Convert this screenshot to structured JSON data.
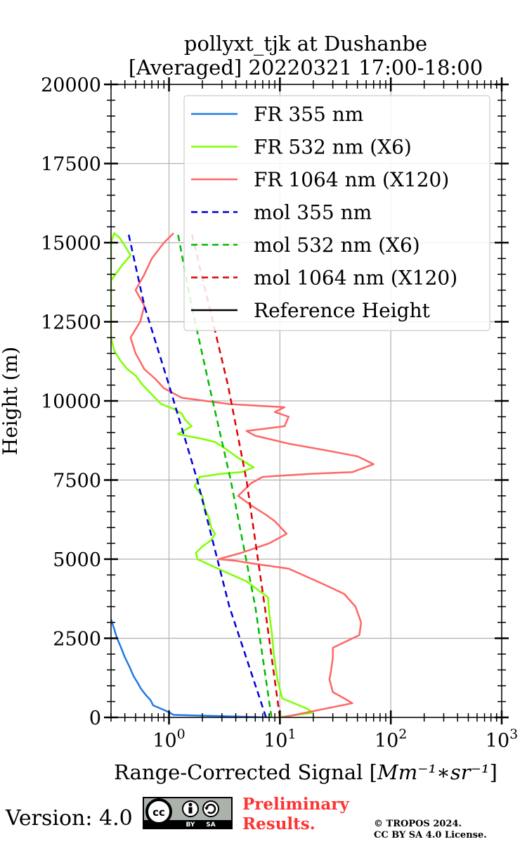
{
  "chart_data": {
    "type": "line",
    "title_line1": "pollyxt_tjk at Dushanbe",
    "title_line2": "[Averaged] 20220321 17:00-18:00",
    "xlabel": "Range-Corrected Signal [Mm^{-1}*sr^{-1}]",
    "xlabel_main": "Range-Corrected Signal [",
    "xlabel_unit": "Mm⁻¹∗sr⁻¹",
    "xlabel_close": "]",
    "ylabel": "Height (m)",
    "xscale": "log",
    "xlim": [
      0.3,
      1000
    ],
    "ylim": [
      0,
      20000
    ],
    "grid": true,
    "legend_position": "upper-right",
    "x_ticks": [
      {
        "value": 1,
        "base": "10",
        "exp": "0"
      },
      {
        "value": 10,
        "base": "10",
        "exp": "1"
      },
      {
        "value": 100,
        "base": "10",
        "exp": "2"
      },
      {
        "value": 1000,
        "base": "10",
        "exp": "3"
      }
    ],
    "y_ticks": [
      "0",
      "2500",
      "5000",
      "7500",
      "10000",
      "12500",
      "15000",
      "17500",
      "20000"
    ],
    "series": [
      {
        "name": "FR 355 nm",
        "color": "#1f7ae8",
        "style": "solid",
        "points": [
          [
            8.0,
            0
          ],
          [
            1.1,
            80
          ],
          [
            0.95,
            200
          ],
          [
            0.72,
            380
          ],
          [
            0.68,
            550
          ],
          [
            0.62,
            700
          ],
          [
            0.56,
            900
          ],
          [
            0.52,
            1100
          ],
          [
            0.48,
            1300
          ],
          [
            0.44,
            1600
          ],
          [
            0.4,
            1900
          ],
          [
            0.37,
            2200
          ],
          [
            0.34,
            2500
          ],
          [
            0.32,
            2800
          ],
          [
            0.3,
            3100
          ]
        ]
      },
      {
        "name": "FR 532 nm (X6)",
        "color": "#7fff00",
        "style": "solid",
        "points": [
          [
            9.5,
            0
          ],
          [
            20,
            150
          ],
          [
            17,
            300
          ],
          [
            10.5,
            600
          ],
          [
            9.5,
            1200
          ],
          [
            8.8,
            2000
          ],
          [
            8.5,
            2600
          ],
          [
            8.0,
            3300
          ],
          [
            7.8,
            3800
          ],
          [
            6.5,
            4000
          ],
          [
            5.0,
            4300
          ],
          [
            3.2,
            4600
          ],
          [
            2.4,
            4800
          ],
          [
            1.8,
            5000
          ],
          [
            1.75,
            5200
          ],
          [
            2.0,
            5400
          ],
          [
            2.4,
            5600
          ],
          [
            2.6,
            5800
          ],
          [
            2.4,
            6000
          ],
          [
            2.3,
            6300
          ],
          [
            2.1,
            6600
          ],
          [
            2.0,
            7000
          ],
          [
            1.7,
            7300
          ],
          [
            1.9,
            7600
          ],
          [
            3.0,
            7700
          ],
          [
            4.5,
            7750
          ],
          [
            5.8,
            7900
          ],
          [
            4.2,
            8200
          ],
          [
            3.2,
            8500
          ],
          [
            2.6,
            8700
          ],
          [
            2.0,
            8800
          ],
          [
            1.2,
            8950
          ],
          [
            1.6,
            9200
          ],
          [
            1.4,
            9400
          ],
          [
            1.3,
            9600
          ],
          [
            1.1,
            9750
          ],
          [
            0.85,
            9900
          ],
          [
            0.7,
            10200
          ],
          [
            0.58,
            10500
          ],
          [
            0.5,
            10800
          ],
          [
            0.42,
            11000
          ],
          [
            0.36,
            11300
          ],
          [
            0.32,
            11600
          ],
          [
            0.3,
            12000
          ],
          [
            0.3,
            13000
          ],
          [
            0.3,
            14000
          ],
          [
            0.3,
            15000
          ],
          [
            0.32,
            15300
          ],
          [
            0.36,
            15150
          ],
          [
            0.4,
            14900
          ],
          [
            0.45,
            14600
          ],
          [
            0.38,
            14300
          ],
          [
            0.33,
            14000
          ],
          [
            0.3,
            13800
          ]
        ]
      },
      {
        "name": "FR 1064 nm (X120)",
        "color": "#ff6666",
        "style": "solid",
        "points": [
          [
            10.5,
            0
          ],
          [
            45,
            450
          ],
          [
            38,
            600
          ],
          [
            30,
            800
          ],
          [
            28,
            1200
          ],
          [
            29,
            1500
          ],
          [
            30,
            1900
          ],
          [
            30,
            2200
          ],
          [
            52,
            2600
          ],
          [
            54,
            3000
          ],
          [
            48,
            3500
          ],
          [
            38,
            3900
          ],
          [
            25,
            4200
          ],
          [
            12,
            4700
          ],
          [
            6,
            4850
          ],
          [
            4.0,
            4950
          ],
          [
            2.8,
            5000
          ],
          [
            4.5,
            5200
          ],
          [
            8,
            5500
          ],
          [
            11.5,
            5800
          ],
          [
            9,
            6200
          ],
          [
            7.5,
            6400
          ],
          [
            5.5,
            6700
          ],
          [
            4.2,
            7000
          ],
          [
            5.5,
            7400
          ],
          [
            7.0,
            7600
          ],
          [
            20,
            7700
          ],
          [
            45,
            7750
          ],
          [
            70,
            8000
          ],
          [
            50,
            8250
          ],
          [
            25,
            8450
          ],
          [
            12,
            8650
          ],
          [
            6,
            8900
          ],
          [
            5,
            9050
          ],
          [
            11,
            9200
          ],
          [
            12,
            9500
          ],
          [
            9,
            9650
          ],
          [
            11,
            9800
          ],
          [
            3.5,
            9900
          ],
          [
            1.3,
            10100
          ],
          [
            0.9,
            10400
          ],
          [
            0.75,
            10700
          ],
          [
            0.6,
            11000
          ],
          [
            0.5,
            11500
          ],
          [
            0.45,
            12000
          ],
          [
            0.55,
            12500
          ],
          [
            0.6,
            13000
          ],
          [
            0.5,
            13500
          ],
          [
            0.6,
            14000
          ],
          [
            0.7,
            14500
          ],
          [
            0.9,
            15000
          ],
          [
            1.1,
            15300
          ]
        ]
      },
      {
        "name": "mol 355 nm",
        "color": "#0000dd",
        "style": "dashed",
        "points": [
          [
            7.5,
            0
          ],
          [
            3.5,
            3500
          ],
          [
            1.8,
            7500
          ],
          [
            1.0,
            10500
          ],
          [
            0.6,
            13000
          ],
          [
            0.43,
            15300
          ]
        ]
      },
      {
        "name": "mol 532 nm (X6)",
        "color": "#00bb00",
        "style": "dashed",
        "points": [
          [
            8.4,
            0
          ],
          [
            6.0,
            3500
          ],
          [
            3.6,
            7500
          ],
          [
            2.3,
            10500
          ],
          [
            1.6,
            13000
          ],
          [
            1.2,
            15300
          ]
        ]
      },
      {
        "name": "mol 1064 nm (X120)",
        "color": "#dd0000",
        "style": "dashed",
        "points": [
          [
            10.0,
            0
          ],
          [
            7.3,
            3500
          ],
          [
            5.0,
            7500
          ],
          [
            3.4,
            10500
          ],
          [
            2.3,
            13000
          ],
          [
            1.6,
            15300
          ]
        ]
      },
      {
        "name": "Reference Height",
        "color": "#000000",
        "style": "solid",
        "points": []
      }
    ]
  },
  "footer": {
    "version": "Version: 4.0",
    "badge_cc": "cc",
    "badge_by": "BY",
    "badge_sa": "SA",
    "preliminary_line1": "Preliminary",
    "preliminary_line2": "Results.",
    "copyright_line1": "© TROPOS 2024.",
    "copyright_line2": "CC BY SA 4.0 License."
  }
}
